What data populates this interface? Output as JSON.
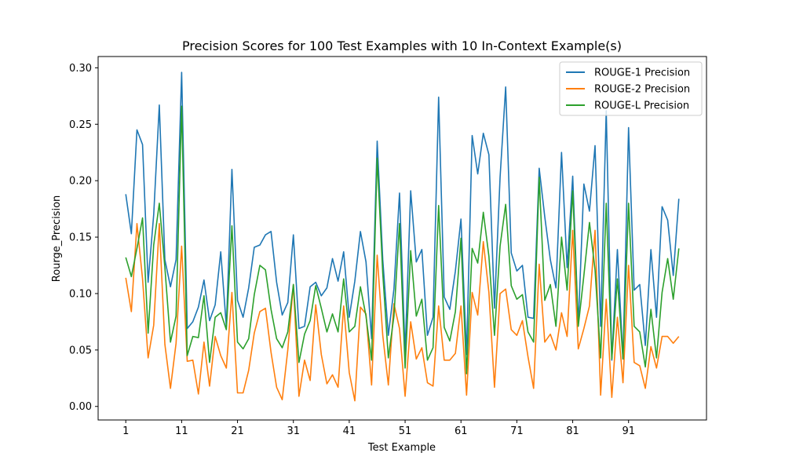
{
  "chart_data": {
    "type": "line",
    "title": "Precision Scores for 100 Test Examples with 10 In-Context Example(s)",
    "xlabel": "Test Example",
    "ylabel": "Rourge_Precision",
    "x_start": 1,
    "x_end": 100,
    "x_ticks": [
      1,
      11,
      21,
      31,
      41,
      51,
      61,
      71,
      81,
      91
    ],
    "y_ticks": [
      0.0,
      0.05,
      0.1,
      0.15,
      0.2,
      0.25,
      0.3
    ],
    "y_tick_labels": [
      "0.00",
      "0.05",
      "0.10",
      "0.15",
      "0.20",
      "0.25",
      "0.30"
    ],
    "ylim": [
      -0.012,
      0.31
    ],
    "xlim": [
      -3.95,
      104.95
    ],
    "legend_position": "upper right",
    "series": [
      {
        "name": "ROUGE-1 Precision",
        "color": "#1f77b4",
        "values": [
          0.188,
          0.153,
          0.245,
          0.232,
          0.11,
          0.17,
          0.267,
          0.13,
          0.106,
          0.13,
          0.296,
          0.069,
          0.075,
          0.088,
          0.112,
          0.076,
          0.09,
          0.137,
          0.071,
          0.21,
          0.094,
          0.079,
          0.105,
          0.141,
          0.143,
          0.152,
          0.155,
          0.11,
          0.081,
          0.092,
          0.152,
          0.069,
          0.071,
          0.106,
          0.11,
          0.098,
          0.105,
          0.131,
          0.111,
          0.137,
          0.079,
          0.111,
          0.155,
          0.128,
          0.06,
          0.235,
          0.13,
          0.063,
          0.104,
          0.189,
          0.048,
          0.191,
          0.128,
          0.139,
          0.063,
          0.079,
          0.274,
          0.097,
          0.086,
          0.12,
          0.166,
          0.046,
          0.24,
          0.206,
          0.242,
          0.223,
          0.087,
          0.203,
          0.283,
          0.136,
          0.12,
          0.125,
          0.079,
          0.078,
          0.211,
          0.168,
          0.13,
          0.105,
          0.225,
          0.123,
          0.204,
          0.072,
          0.197,
          0.173,
          0.231,
          0.071,
          0.262,
          0.041,
          0.139,
          0.042,
          0.247,
          0.103,
          0.108,
          0.054,
          0.139,
          0.079,
          0.177,
          0.165,
          0.116,
          0.184
        ]
      },
      {
        "name": "ROUGE-2 Precision",
        "color": "#ff7f0e",
        "values": [
          0.114,
          0.084,
          0.162,
          0.113,
          0.043,
          0.072,
          0.162,
          0.055,
          0.016,
          0.056,
          0.142,
          0.04,
          0.041,
          0.011,
          0.057,
          0.018,
          0.062,
          0.045,
          0.034,
          0.101,
          0.012,
          0.012,
          0.032,
          0.065,
          0.084,
          0.087,
          0.048,
          0.017,
          0.006,
          0.05,
          0.108,
          0.009,
          0.041,
          0.023,
          0.09,
          0.046,
          0.02,
          0.028,
          0.017,
          0.089,
          0.03,
          0.005,
          0.088,
          0.082,
          0.019,
          0.134,
          0.063,
          0.019,
          0.091,
          0.069,
          0.009,
          0.075,
          0.042,
          0.052,
          0.021,
          0.018,
          0.089,
          0.041,
          0.041,
          0.047,
          0.089,
          0.01,
          0.101,
          0.081,
          0.146,
          0.101,
          0.017,
          0.1,
          0.104,
          0.068,
          0.063,
          0.076,
          0.044,
          0.016,
          0.126,
          0.057,
          0.064,
          0.05,
          0.083,
          0.062,
          0.156,
          0.051,
          0.069,
          0.089,
          0.156,
          0.01,
          0.095,
          0.008,
          0.079,
          0.021,
          0.125,
          0.039,
          0.036,
          0.016,
          0.053,
          0.034,
          0.062,
          0.062,
          0.056,
          0.062
        ]
      },
      {
        "name": "ROUGE-L Precision",
        "color": "#2ca02c",
        "values": [
          0.132,
          0.115,
          0.14,
          0.167,
          0.065,
          0.143,
          0.18,
          0.123,
          0.057,
          0.08,
          0.266,
          0.045,
          0.062,
          0.061,
          0.098,
          0.039,
          0.079,
          0.083,
          0.068,
          0.16,
          0.057,
          0.051,
          0.06,
          0.099,
          0.125,
          0.121,
          0.086,
          0.06,
          0.052,
          0.066,
          0.108,
          0.039,
          0.064,
          0.076,
          0.107,
          0.087,
          0.066,
          0.082,
          0.066,
          0.113,
          0.066,
          0.071,
          0.106,
          0.08,
          0.041,
          0.22,
          0.118,
          0.043,
          0.08,
          0.162,
          0.034,
          0.138,
          0.08,
          0.095,
          0.041,
          0.052,
          0.178,
          0.07,
          0.058,
          0.084,
          0.149,
          0.029,
          0.14,
          0.127,
          0.172,
          0.133,
          0.063,
          0.142,
          0.179,
          0.107,
          0.095,
          0.099,
          0.066,
          0.057,
          0.203,
          0.094,
          0.108,
          0.071,
          0.15,
          0.103,
          0.191,
          0.071,
          0.116,
          0.163,
          0.121,
          0.043,
          0.18,
          0.042,
          0.113,
          0.042,
          0.18,
          0.071,
          0.066,
          0.035,
          0.086,
          0.043,
          0.101,
          0.131,
          0.095,
          0.14
        ]
      }
    ]
  }
}
